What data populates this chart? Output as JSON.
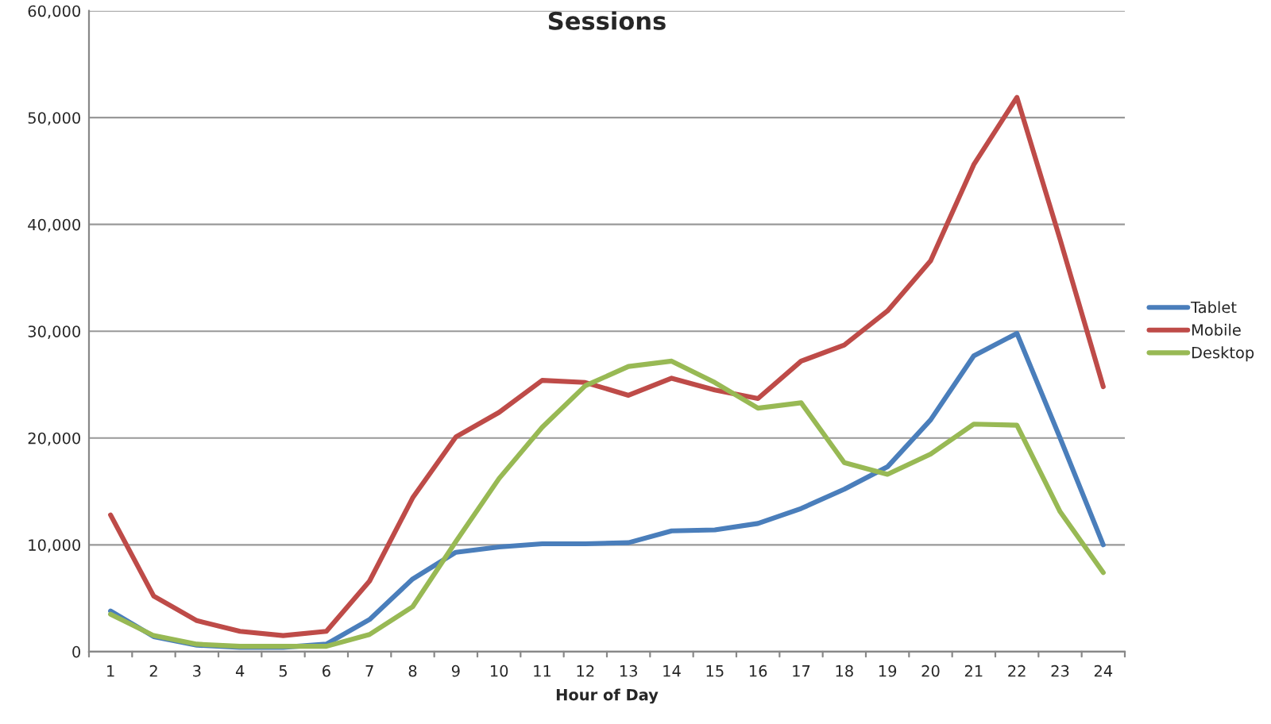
{
  "chart_data": {
    "type": "line",
    "title": "Sessions",
    "xlabel": "Hour of Day",
    "categories": [
      "1",
      "2",
      "3",
      "4",
      "5",
      "6",
      "7",
      "8",
      "9",
      "10",
      "11",
      "12",
      "13",
      "14",
      "15",
      "16",
      "17",
      "18",
      "19",
      "20",
      "21",
      "22",
      "23",
      "24"
    ],
    "series": [
      {
        "name": "Tablet",
        "color": "#4a7ebb",
        "values": [
          3800,
          1400,
          600,
          400,
          400,
          700,
          3000,
          6800,
          9300,
          9800,
          10100,
          10100,
          10200,
          11300,
          11400,
          12000,
          13400,
          15200,
          17300,
          21700,
          27700,
          29800,
          20000,
          10000
        ]
      },
      {
        "name": "Mobile",
        "color": "#be4b48",
        "values": [
          12800,
          5200,
          2900,
          1900,
          1500,
          1900,
          6600,
          14400,
          20100,
          22400,
          25400,
          25200,
          24000,
          25600,
          24500,
          23700,
          27200,
          28700,
          31900,
          36600,
          45600,
          51900,
          38600,
          24800
        ]
      },
      {
        "name": "Desktop",
        "color": "#98b954",
        "values": [
          3500,
          1500,
          700,
          500,
          500,
          500,
          1600,
          4200,
          10300,
          16200,
          21000,
          24900,
          26700,
          27200,
          25200,
          22800,
          23300,
          17700,
          16600,
          18500,
          21300,
          21200,
          13100,
          7400
        ]
      }
    ],
    "ylim": [
      0,
      60000
    ],
    "yticks": [
      {
        "value": 0,
        "label": "0"
      },
      {
        "value": 10000,
        "label": "10,000"
      },
      {
        "value": 20000,
        "label": "20,000"
      },
      {
        "value": 30000,
        "label": "30,000"
      },
      {
        "value": 40000,
        "label": "40,000"
      },
      {
        "value": 50000,
        "label": "50,000"
      },
      {
        "value": 60000,
        "label": "60,000"
      }
    ],
    "grid": "y",
    "legend": "right",
    "marker": "none",
    "line_style": "solid"
  }
}
